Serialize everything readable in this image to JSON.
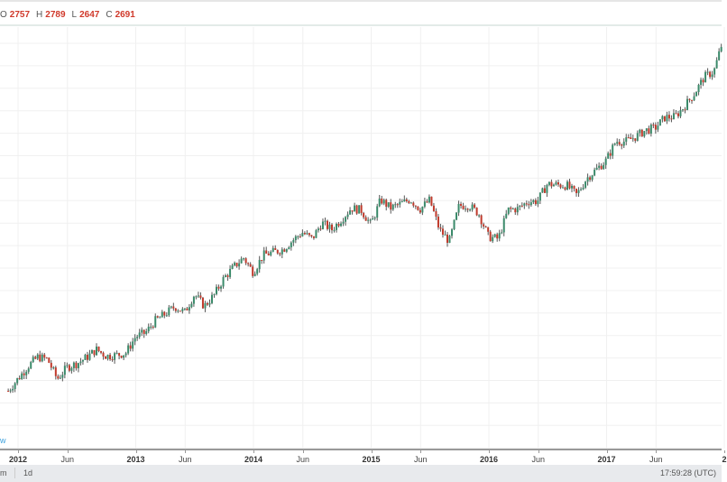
{
  "legend": {
    "o_label": "O",
    "o": "2757",
    "h_label": "H",
    "h": "2789",
    "l_label": "L",
    "l": "2647",
    "c_label": "C",
    "c": "2691"
  },
  "watermark": "w",
  "toolbar": {
    "range_partial": "m",
    "interval": "1d",
    "clock": "17:59:28 (UTC)"
  },
  "colors": {
    "up": "#3a8a6a",
    "down": "#c0392b",
    "wick": "#555555",
    "grid": "#f0f0f0"
  },
  "chart_data": {
    "type": "candlestick",
    "title": "",
    "xlabel": "",
    "ylabel": "",
    "x_ticks": [
      {
        "label": "2012",
        "t": 2012.0,
        "bold": true
      },
      {
        "label": "Jun",
        "t": 2012.42
      },
      {
        "label": "2013",
        "t": 2013.0,
        "bold": true
      },
      {
        "label": "Jun",
        "t": 2013.42
      },
      {
        "label": "2014",
        "t": 2014.0,
        "bold": true
      },
      {
        "label": "Jun",
        "t": 2014.42
      },
      {
        "label": "2015",
        "t": 2015.0,
        "bold": true
      },
      {
        "label": "Jun",
        "t": 2015.42
      },
      {
        "label": "2016",
        "t": 2016.0,
        "bold": true
      },
      {
        "label": "Jun",
        "t": 2016.42
      },
      {
        "label": "2017",
        "t": 2017.0,
        "bold": true
      },
      {
        "label": "Jun",
        "t": 2017.42
      },
      {
        "label": "2",
        "t": 2018.0,
        "bold": true
      }
    ],
    "x_range": [
      2011.85,
      2018.0
    ],
    "y_range": [
      1150,
      2800
    ],
    "monthly_closes_start": "2011-12",
    "monthly_closes": [
      1258,
      1312,
      1366,
      1408,
      1398,
      1310,
      1362,
      1379,
      1406,
      1441,
      1412,
      1416,
      1426,
      1498,
      1515,
      1569,
      1598,
      1631,
      1606,
      1686,
      1633,
      1682,
      1757,
      1806,
      1848,
      1783,
      1859,
      1872,
      1884,
      1924,
      1960,
      1931,
      2003,
      1972,
      2018,
      2068,
      2059,
      1995,
      2105,
      2068,
      2086,
      2107,
      2063,
      2104,
      1972,
      1920,
      2079,
      2080,
      2044,
      1940,
      1932,
      2060,
      2065,
      2097,
      2099,
      2174,
      2171,
      2168,
      2126,
      2199,
      2239,
      2279,
      2364,
      2363,
      2384,
      2412,
      2423,
      2470,
      2472,
      2519,
      2575,
      2648,
      2674,
      2824
    ]
  }
}
